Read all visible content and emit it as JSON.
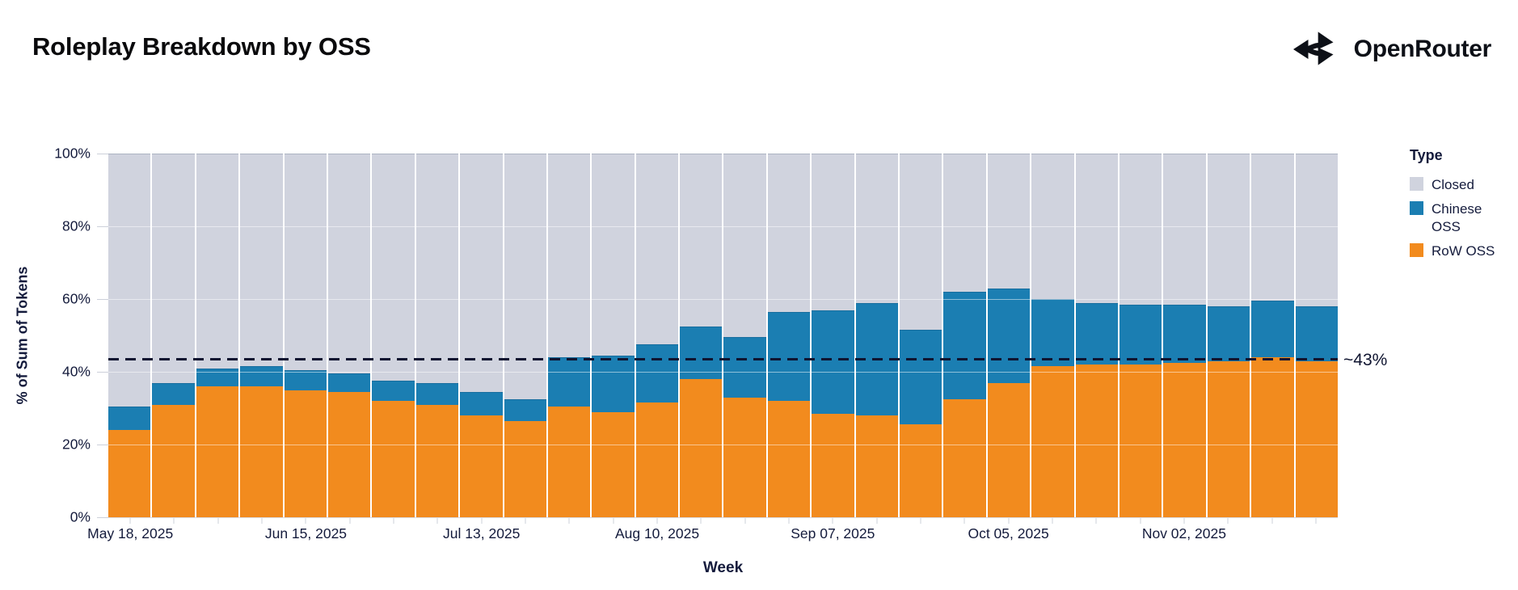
{
  "header": {
    "title": "Roleplay Breakdown by OSS",
    "brand": "OpenRouter"
  },
  "legend": {
    "title": "Type",
    "items": [
      {
        "label": "Closed",
        "color": "#D0D3DE"
      },
      {
        "label": "Chinese OSS",
        "color": "#1B7EB2"
      },
      {
        "label": "RoW OSS",
        "color": "#F28B1E"
      }
    ]
  },
  "ref_line": {
    "label": "~43%",
    "value": 43.5
  },
  "chart_data": {
    "type": "bar",
    "stacked": true,
    "normalized_percent": true,
    "title": "Roleplay Breakdown by OSS",
    "xlabel": "Week",
    "ylabel": "% of Sum of Tokens",
    "ylim": [
      0,
      100
    ],
    "y_ticks": [
      "0%",
      "20%",
      "40%",
      "60%",
      "80%",
      "100%"
    ],
    "grid_values": [
      20,
      40,
      60,
      80
    ],
    "x_tick_label_every": 4,
    "x_tick_labels_shown": [
      "May 18, 2025",
      "Jun 15, 2025",
      "Jul 13, 2025",
      "Aug 10, 2025",
      "Sep 07, 2025",
      "Oct 05, 2025",
      "Nov 02, 2025"
    ],
    "legend_position": "right",
    "categories": [
      "May 18, 2025",
      "May 25, 2025",
      "Jun 01, 2025",
      "Jun 08, 2025",
      "Jun 15, 2025",
      "Jun 22, 2025",
      "Jun 29, 2025",
      "Jul 06, 2025",
      "Jul 13, 2025",
      "Jul 20, 2025",
      "Jul 27, 2025",
      "Aug 03, 2025",
      "Aug 10, 2025",
      "Aug 17, 2025",
      "Aug 24, 2025",
      "Aug 31, 2025",
      "Sep 07, 2025",
      "Sep 14, 2025",
      "Sep 21, 2025",
      "Sep 28, 2025",
      "Oct 05, 2025",
      "Oct 12, 2025",
      "Oct 19, 2025",
      "Oct 26, 2025",
      "Nov 02, 2025",
      "Nov 09, 2025",
      "Nov 16, 2025",
      "Nov 23, 2025"
    ],
    "series": [
      {
        "name": "RoW OSS",
        "color": "#F28B1E",
        "values": [
          24,
          31,
          36,
          36,
          35,
          34.5,
          32,
          31,
          28,
          26.5,
          30.5,
          29,
          31.5,
          38,
          33,
          32,
          28.5,
          28,
          25.5,
          32.5,
          37,
          41.5,
          42,
          42,
          42.5,
          43,
          44,
          43
        ]
      },
      {
        "name": "Chinese OSS",
        "color": "#1B7EB2",
        "values": [
          6.5,
          6,
          5,
          5.5,
          5.5,
          5,
          5.5,
          6,
          6.5,
          6,
          13.5,
          15.5,
          16,
          14.5,
          16.5,
          24.5,
          28.5,
          31,
          26,
          29.5,
          26,
          18.5,
          17,
          16.5,
          16,
          15,
          15.5,
          15
        ]
      },
      {
        "name": "Closed",
        "color": "#D0D3DE",
        "values": [
          69.5,
          63,
          59,
          58.5,
          59.5,
          60.5,
          62.5,
          63,
          65.5,
          67.5,
          56,
          55.5,
          52.5,
          47.5,
          50.5,
          43.5,
          43,
          41,
          48.5,
          38,
          37,
          40,
          41,
          41.5,
          41.5,
          42,
          40.5,
          42
        ]
      }
    ],
    "reference_line": {
      "value": 43.5,
      "label": "~43%"
    }
  }
}
